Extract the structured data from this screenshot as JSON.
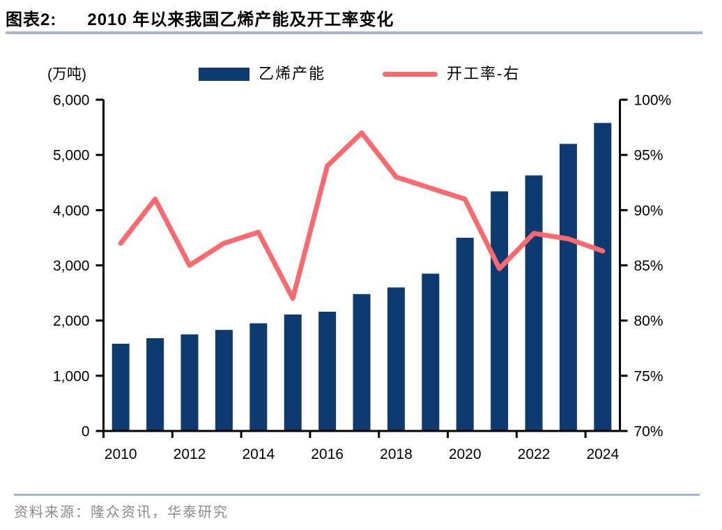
{
  "header": {
    "tag": "图表2:",
    "title": "2010 年以来我国乙烯产能及开工率变化"
  },
  "legend": {
    "unit_label": "(万吨)",
    "bar_label": "乙烯产能",
    "line_label": "开工率-右"
  },
  "footer": {
    "source": "资料来源：隆众资讯，华泰研究"
  },
  "colors": {
    "bar": "#0d3a70",
    "line": "#f9696d",
    "rule": "#9fb8d0",
    "axis": "#000000",
    "source_text": "#8a8a8a"
  },
  "chart_data": {
    "type": "bar+line combo",
    "title": "2010 年以来我国乙烯产能及开工率变化",
    "categories": [
      "2010",
      "2011",
      "2012",
      "2013",
      "2014",
      "2015",
      "2016",
      "2017",
      "2018",
      "2019",
      "2020",
      "2021",
      "2022",
      "2023",
      "2024"
    ],
    "series": [
      {
        "name": "乙烯产能",
        "type": "bar",
        "axis": "left",
        "unit": "万吨",
        "values": [
          1580,
          1680,
          1750,
          1830,
          1950,
          2110,
          2160,
          2480,
          2600,
          2850,
          3500,
          4340,
          4630,
          5200,
          5580
        ]
      },
      {
        "name": "开工率-右",
        "type": "line",
        "axis": "right",
        "unit": "%",
        "values": [
          87,
          91,
          85,
          87,
          88,
          82,
          94,
          97,
          93,
          92,
          91,
          84.7,
          87.9,
          87.4,
          86.3
        ]
      }
    ],
    "left_axis": {
      "label": "(万吨)",
      "min": 0,
      "max": 6000,
      "step": 1000,
      "tick_labels": [
        "0",
        "1,000",
        "2,000",
        "3,000",
        "4,000",
        "5,000",
        "6,000"
      ]
    },
    "right_axis": {
      "label": "开工率",
      "min": 70,
      "max": 100,
      "step": 5,
      "tick_labels": [
        "70%",
        "75%",
        "80%",
        "85%",
        "90%",
        "95%",
        "100%"
      ]
    },
    "x_tick_labels": [
      "2010",
      "2012",
      "2014",
      "2016",
      "2018",
      "2020",
      "2022",
      "2024"
    ],
    "grid": false,
    "legend_position": "top"
  }
}
